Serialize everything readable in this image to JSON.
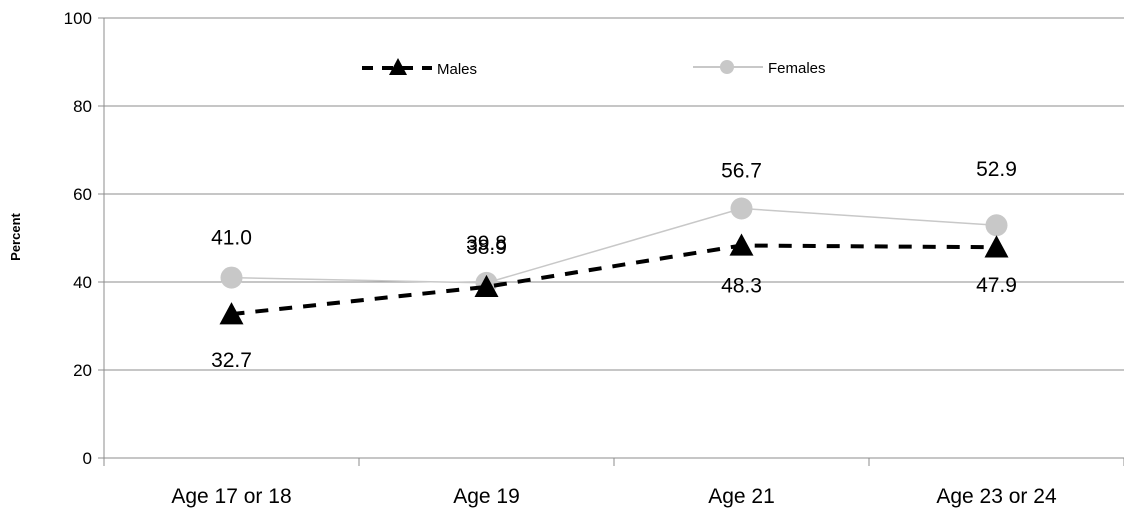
{
  "chart_data": {
    "type": "line",
    "title": "",
    "xlabel": "",
    "ylabel": "Percent",
    "ylim": [
      0,
      100
    ],
    "yticks": [
      0,
      20,
      40,
      60,
      80,
      100
    ],
    "grid": true,
    "legend_position": "top",
    "categories": [
      "Age 17 or 18",
      "Age 19",
      "Age 21",
      "Age 23 or 24"
    ],
    "series": [
      {
        "name": "Males",
        "values": [
          32.7,
          38.9,
          48.3,
          47.9
        ],
        "labels": [
          "32.7",
          "38.9",
          "48.3",
          "47.9"
        ],
        "color": "#000000",
        "line_style": "dashed",
        "marker": "triangle"
      },
      {
        "name": "Females",
        "values": [
          41.0,
          39.8,
          56.7,
          52.9
        ],
        "labels": [
          "41.0",
          "39.8",
          "56.7",
          "52.9"
        ],
        "color": "#c8c8c8",
        "line_style": "solid",
        "marker": "circle"
      }
    ]
  }
}
